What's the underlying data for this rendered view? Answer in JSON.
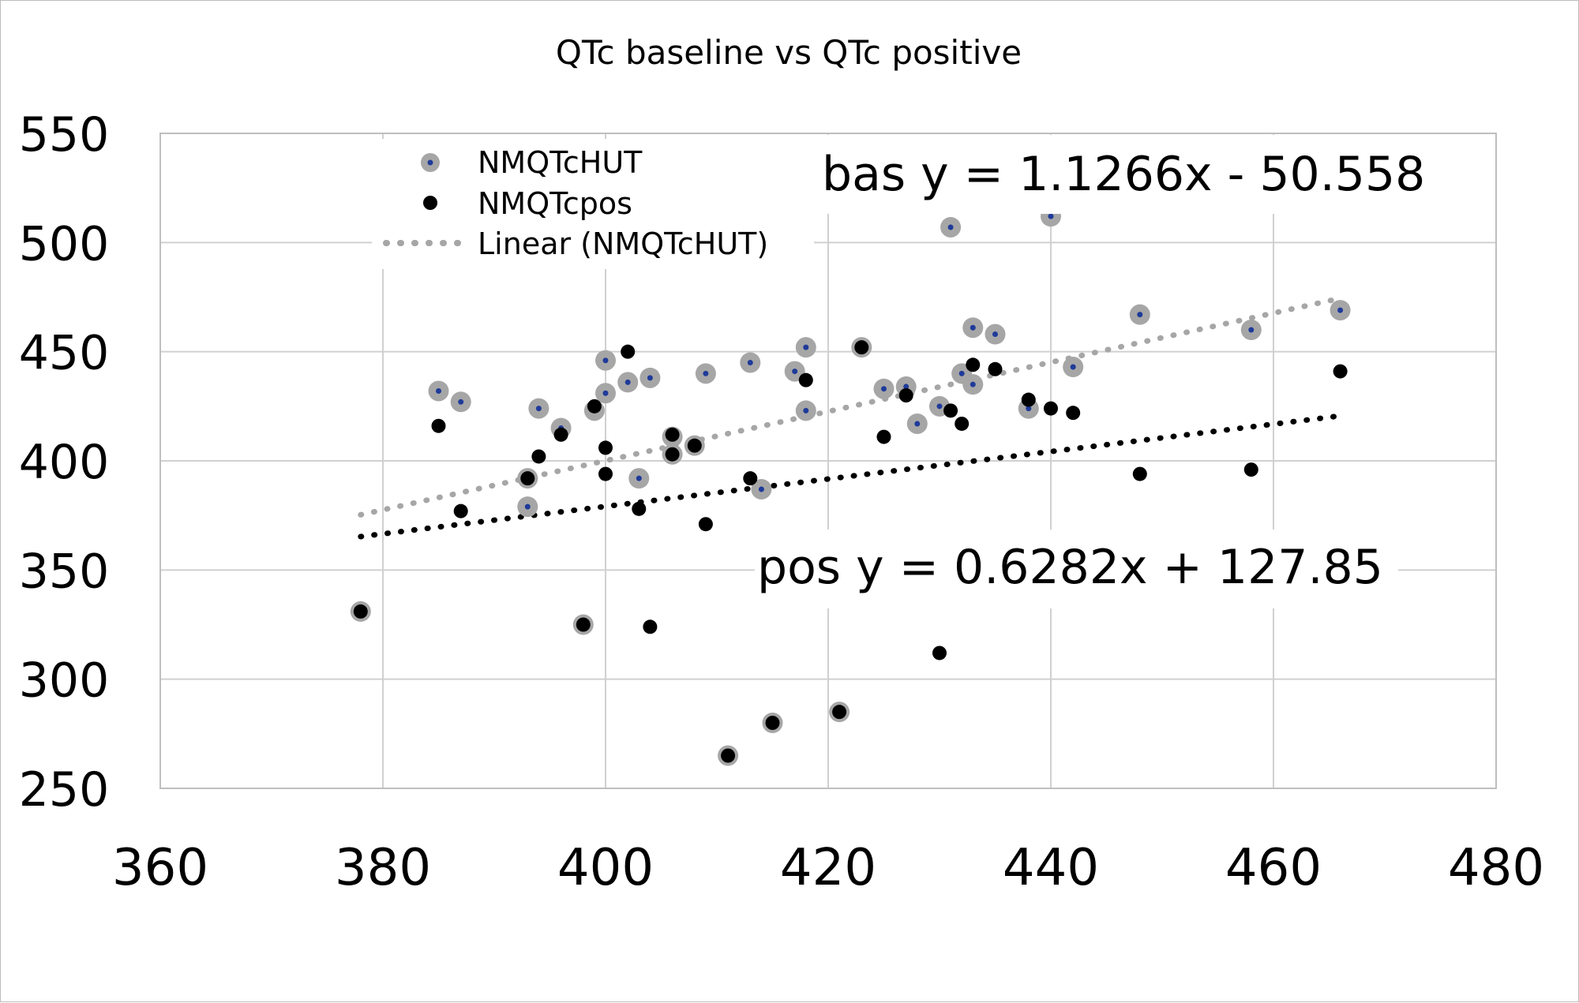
{
  "chart_data": {
    "type": "scatter",
    "title": "QTc baseline vs QTc positive",
    "xlabel": "",
    "ylabel": "",
    "xlim": [
      360,
      480
    ],
    "ylim": [
      250,
      550
    ],
    "xticks": [
      360,
      380,
      400,
      420,
      440,
      460,
      480
    ],
    "yticks": [
      250,
      300,
      350,
      400,
      450,
      500,
      550
    ],
    "grid": true,
    "legend": {
      "position": "top-left",
      "entries": [
        "NMQTcHUT",
        "NMQTcpos",
        "Linear (NMQTcHUT)"
      ]
    },
    "series": [
      {
        "name": "NMQTcHUT",
        "color": "#a6a6a6",
        "center_color": "#1f3b99",
        "points": [
          [
            378,
            331
          ],
          [
            385,
            432
          ],
          [
            387,
            427
          ],
          [
            393,
            379
          ],
          [
            393,
            392
          ],
          [
            394,
            424
          ],
          [
            396,
            415
          ],
          [
            398,
            325
          ],
          [
            399,
            423
          ],
          [
            400,
            446
          ],
          [
            400,
            431
          ],
          [
            402,
            436
          ],
          [
            403,
            392
          ],
          [
            404,
            438
          ],
          [
            406,
            411
          ],
          [
            406,
            403
          ],
          [
            408,
            407
          ],
          [
            409,
            440
          ],
          [
            411,
            265
          ],
          [
            413,
            445
          ],
          [
            414,
            387
          ],
          [
            415,
            280
          ],
          [
            417,
            441
          ],
          [
            418,
            452
          ],
          [
            418,
            423
          ],
          [
            421,
            285
          ],
          [
            423,
            452
          ],
          [
            425,
            433
          ],
          [
            427,
            434
          ],
          [
            428,
            417
          ],
          [
            430,
            425
          ],
          [
            431,
            507
          ],
          [
            432,
            440
          ],
          [
            433,
            461
          ],
          [
            433,
            435
          ],
          [
            435,
            458
          ],
          [
            438,
            424
          ],
          [
            440,
            512
          ],
          [
            442,
            443
          ],
          [
            448,
            467
          ],
          [
            458,
            460
          ],
          [
            466,
            469
          ]
        ]
      },
      {
        "name": "NMQTcpos",
        "color": "#000000",
        "points": [
          [
            378,
            331
          ],
          [
            385,
            416
          ],
          [
            387,
            377
          ],
          [
            393,
            392
          ],
          [
            394,
            402
          ],
          [
            396,
            412
          ],
          [
            398,
            325
          ],
          [
            399,
            425
          ],
          [
            400,
            406
          ],
          [
            400,
            394
          ],
          [
            402,
            450
          ],
          [
            403,
            378
          ],
          [
            404,
            324
          ],
          [
            406,
            412
          ],
          [
            406,
            403
          ],
          [
            408,
            407
          ],
          [
            409,
            371
          ],
          [
            411,
            265
          ],
          [
            413,
            392
          ],
          [
            415,
            280
          ],
          [
            418,
            437
          ],
          [
            421,
            285
          ],
          [
            423,
            452
          ],
          [
            425,
            411
          ],
          [
            427,
            430
          ],
          [
            428,
            336
          ],
          [
            430,
            312
          ],
          [
            431,
            423
          ],
          [
            432,
            417
          ],
          [
            433,
            444
          ],
          [
            435,
            442
          ],
          [
            438,
            428
          ],
          [
            440,
            424
          ],
          [
            442,
            422
          ],
          [
            448,
            394
          ],
          [
            458,
            396
          ],
          [
            466,
            441
          ]
        ]
      }
    ],
    "trendlines": [
      {
        "name": "Linear (NMQTcHUT)",
        "series": "NMQTcHUT",
        "slope": 1.1266,
        "intercept": -50.558,
        "x": [
          378,
          466
        ],
        "color": "#a6a6a6"
      },
      {
        "series": "NMQTcpos",
        "slope": 0.6282,
        "intercept": 127.85,
        "x": [
          378,
          466
        ],
        "color": "#000000"
      }
    ],
    "annotations": [
      {
        "text": "bas  y = 1.1266x - 50.558"
      },
      {
        "text": "pos y = 0.6282x + 127.85"
      }
    ]
  }
}
